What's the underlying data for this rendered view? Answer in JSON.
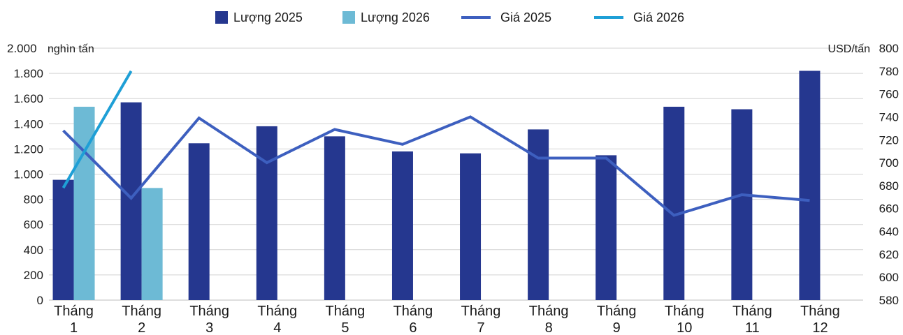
{
  "chart_data": {
    "type": "bar",
    "categories": [
      [
        "Tháng",
        "1"
      ],
      [
        "Tháng",
        "2"
      ],
      [
        "Tháng",
        "3"
      ],
      [
        "Tháng",
        "4"
      ],
      [
        "Tháng",
        "5"
      ],
      [
        "Tháng",
        "6"
      ],
      [
        "Tháng",
        "7"
      ],
      [
        "Tháng",
        "8"
      ],
      [
        "Tháng",
        "9"
      ],
      [
        "Tháng",
        "10"
      ],
      [
        "Tháng",
        "11"
      ],
      [
        "Tháng",
        "12"
      ]
    ],
    "left_axis": {
      "unit": "nghìn tấn",
      "ylim": [
        0,
        2000
      ],
      "ticks": [
        0,
        200,
        400,
        600,
        800,
        1000,
        1200,
        1400,
        1600,
        1800,
        2000
      ],
      "tick_labels": [
        "0",
        "200",
        "400",
        "600",
        "800",
        "1.000",
        "1.200",
        "1.400",
        "1.600",
        "1.800",
        "2.000"
      ]
    },
    "right_axis": {
      "unit": "USD/tấn",
      "ylim": [
        580,
        800
      ],
      "ticks": [
        580,
        600,
        620,
        640,
        660,
        680,
        700,
        720,
        740,
        760,
        780,
        800
      ],
      "tick_labels": [
        "580",
        "600",
        "620",
        "640",
        "660",
        "680",
        "700",
        "720",
        "740",
        "760",
        "780",
        "800"
      ]
    },
    "grid": true,
    "legend_position": "top",
    "series": [
      {
        "name": "Lượng 2025",
        "type": "bar",
        "axis": "left",
        "color": "#25378f",
        "values": [
          955,
          1570,
          1245,
          1380,
          1300,
          1180,
          1165,
          1355,
          1150,
          1535,
          1515,
          1820
        ]
      },
      {
        "name": "Lượng 2026",
        "type": "bar",
        "axis": "left",
        "color": "#6dbad5",
        "values": [
          1535,
          890,
          null,
          null,
          null,
          null,
          null,
          null,
          null,
          null,
          null,
          null
        ]
      },
      {
        "name": "Giá 2025",
        "type": "line",
        "axis": "right",
        "color": "#3d5fbf",
        "values": [
          728,
          669,
          739,
          700,
          729,
          716,
          740,
          704,
          704,
          654,
          672,
          667
        ]
      },
      {
        "name": "Giá 2026",
        "type": "line",
        "axis": "right",
        "color": "#1e9fd6",
        "values": [
          678,
          780,
          null,
          null,
          null,
          null,
          null,
          null,
          null,
          null,
          null,
          null
        ]
      }
    ]
  }
}
